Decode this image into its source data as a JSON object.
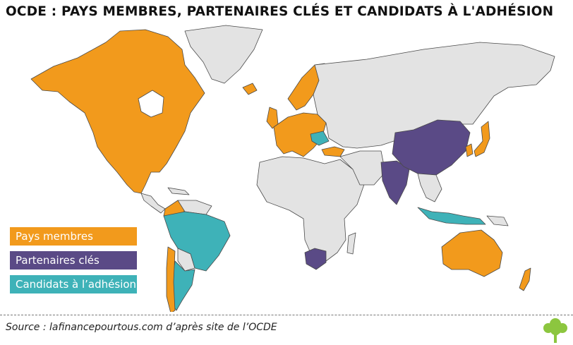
{
  "title": "OCDE : PAYS MEMBRES, PARTENAIRES CLÉS ET CANDIDATS À L'ADHÉSION",
  "legend": [
    {
      "label": "Pays membres",
      "color": "#f29a1c"
    },
    {
      "label": "Partenaires clés",
      "color": "#5a4a86"
    },
    {
      "label": "Candidats à l’adhésion",
      "color": "#3eb2b8"
    }
  ],
  "colors": {
    "non_member": "#e3e3e3",
    "border": "#4a4a4a",
    "members": "#f29a1c",
    "partners": "#5a4a86",
    "candidates": "#3eb2b8",
    "logo": "#8cc63f"
  },
  "source": "Source : lafinancepourtous.com d’après site de l’OCDE",
  "logo_icon": "tree-icon"
}
